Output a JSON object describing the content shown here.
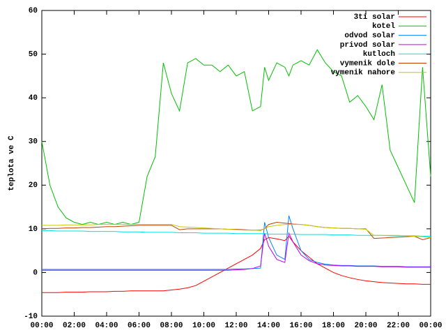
{
  "chart_data": {
    "type": "line",
    "y_label": "teplota ve C",
    "x": [
      0,
      0.5,
      1,
      1.5,
      2,
      2.5,
      3,
      3.5,
      4,
      4.5,
      5,
      5.5,
      6,
      6.5,
      7,
      7.5,
      8,
      8.5,
      9,
      9.5,
      10,
      10.5,
      11,
      11.5,
      12,
      12.5,
      13,
      13.5,
      13.75,
      14,
      14.5,
      15,
      15.25,
      15.5,
      16,
      16.5,
      17,
      17.5,
      18,
      18.5,
      19,
      19.5,
      20,
      20.5,
      21,
      21.5,
      22,
      22.5,
      23,
      23.5,
      24
    ],
    "xlim": [
      0,
      24
    ],
    "xticks": [
      {
        "value": 0,
        "label": "00:00"
      },
      {
        "value": 2,
        "label": "02:00"
      },
      {
        "value": 4,
        "label": "04:00"
      },
      {
        "value": 6,
        "label": "06:00"
      },
      {
        "value": 8,
        "label": "08:00"
      },
      {
        "value": 10,
        "label": "10:00"
      },
      {
        "value": 12,
        "label": "12:00"
      },
      {
        "value": 14,
        "label": "14:00"
      },
      {
        "value": 16,
        "label": "16:00"
      },
      {
        "value": 18,
        "label": "18:00"
      },
      {
        "value": 20,
        "label": "20:00"
      },
      {
        "value": 22,
        "label": "22:00"
      },
      {
        "value": 24,
        "label": "00:00"
      }
    ],
    "ylim": [
      -10,
      60
    ],
    "yticks": [
      -10,
      0,
      10,
      20,
      30,
      40,
      50,
      60
    ],
    "legend": "top-right",
    "series": [
      {
        "name": "3ti solar",
        "color": "#ff0000",
        "values": [
          -4.6,
          -4.6,
          -4.6,
          -4.5,
          -4.5,
          -4.5,
          -4.4,
          -4.4,
          -4.4,
          -4.3,
          -4.3,
          -4.2,
          -4.2,
          -4.2,
          -4.2,
          -4.2,
          -4.0,
          -3.8,
          -3.5,
          -3,
          -2,
          -1,
          0,
          1,
          2,
          3,
          4,
          5.5,
          7.5,
          8,
          7.7,
          7.3,
          8.3,
          7,
          5,
          3.5,
          2,
          1,
          0,
          -0.7,
          -1.2,
          -1.6,
          -1.9,
          -2.1,
          -2.3,
          -2.4,
          -2.5,
          -2.6,
          -2.6,
          -2.7,
          -2.7
        ]
      },
      {
        "name": "kotel",
        "color": "#00c000",
        "values": [
          30,
          20,
          15,
          12.5,
          11.5,
          11,
          11.5,
          11,
          11.5,
          11,
          11.5,
          11,
          11.5,
          22,
          26.5,
          48,
          41,
          37,
          48,
          49,
          47.5,
          47.5,
          46,
          47.5,
          45,
          46,
          37,
          38,
          47,
          44,
          48,
          47,
          45,
          47.5,
          48.5,
          47.5,
          51,
          48,
          46,
          45,
          39,
          40.5,
          38,
          35,
          43,
          28,
          24,
          20,
          16,
          47,
          22
        ]
      },
      {
        "name": "odvod solar",
        "color": "#0080ff",
        "values": [
          0.7,
          0.7,
          0.7,
          0.7,
          0.7,
          0.7,
          0.7,
          0.7,
          0.7,
          0.7,
          0.7,
          0.7,
          0.7,
          0.7,
          0.7,
          0.7,
          0.7,
          0.7,
          0.7,
          0.7,
          0.7,
          0.7,
          0.7,
          0.7,
          0.8,
          0.8,
          0.9,
          1.0,
          11.5,
          8,
          4,
          3,
          13,
          10,
          5,
          3,
          2.3,
          1.9,
          1.7,
          1.6,
          1.6,
          1.5,
          1.5,
          1.5,
          1.4,
          1.4,
          1.4,
          1.3,
          1.3,
          1.3,
          1.3
        ]
      },
      {
        "name": "privod solar",
        "color": "#c000ff",
        "values": [
          0.5,
          0.5,
          0.5,
          0.5,
          0.5,
          0.5,
          0.5,
          0.5,
          0.5,
          0.5,
          0.5,
          0.5,
          0.5,
          0.5,
          0.5,
          0.5,
          0.5,
          0.5,
          0.5,
          0.5,
          0.5,
          0.5,
          0.5,
          0.5,
          0.6,
          0.7,
          0.9,
          1.5,
          9,
          6,
          3,
          2.3,
          9,
          7,
          4,
          2.7,
          2,
          1.7,
          1.6,
          1.5,
          1.5,
          1.4,
          1.4,
          1.4,
          1.3,
          1.3,
          1.3,
          1.2,
          1.2,
          1.2,
          1.2
        ]
      },
      {
        "name": "kutloch",
        "color": "#00e0e0",
        "values": [
          9.6,
          9.6,
          9.5,
          9.5,
          9.5,
          9.5,
          9.4,
          9.4,
          9.4,
          9.4,
          9.3,
          9.3,
          9.3,
          9.2,
          9.2,
          9.2,
          9.2,
          9.1,
          9.1,
          9.1,
          9.0,
          9.0,
          9.0,
          9.0,
          8.9,
          8.9,
          8.9,
          8.9,
          8.9,
          8.8,
          8.8,
          8.8,
          8.8,
          8.8,
          8.7,
          8.7,
          8.7,
          8.7,
          8.6,
          8.6,
          8.6,
          8.5,
          8.5,
          8.5,
          8.5,
          8.4,
          8.4,
          8.4,
          8.4,
          8.3,
          8.3
        ]
      },
      {
        "name": "vymenik dole",
        "color": "#c04000",
        "values": [
          10,
          10.1,
          10.1,
          10.2,
          10.2,
          10.3,
          10.3,
          10.4,
          10.5,
          10.5,
          10.6,
          10.7,
          10.8,
          10.8,
          10.8,
          10.8,
          10.8,
          9.8,
          10,
          10,
          10,
          10,
          10,
          9.9,
          9.9,
          9.8,
          9.7,
          9.7,
          10,
          11,
          11.5,
          11.3,
          11.2,
          11.1,
          11,
          10.8,
          10.5,
          10.3,
          10.2,
          10.1,
          10.1,
          10,
          10,
          7.8,
          7.9,
          8,
          8.1,
          8.2,
          8.3,
          7.5,
          8
        ]
      },
      {
        "name": "vymenik nahore",
        "color": "#c8c800",
        "values": [
          10.8,
          10.8,
          10.8,
          10.9,
          10.9,
          10.9,
          10.9,
          11,
          11,
          11,
          11,
          11,
          11,
          11,
          11,
          11,
          11,
          10.5,
          10.4,
          10.3,
          10.2,
          10.1,
          10,
          9.9,
          9.8,
          9.7,
          9.7,
          9.6,
          10,
          10.5,
          10.8,
          11,
          11,
          11,
          11,
          10.8,
          10.5,
          10.3,
          10.2,
          10.1,
          10.1,
          10,
          9.9,
          8.5,
          8.5,
          8.5,
          8.5,
          8.4,
          8.3,
          8.2,
          8
        ]
      }
    ]
  }
}
